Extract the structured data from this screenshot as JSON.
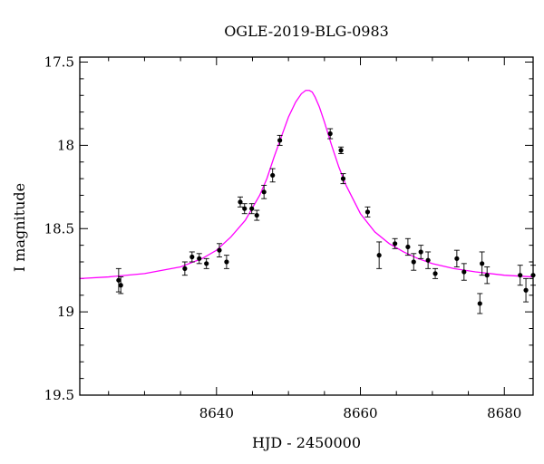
{
  "chart_data": {
    "type": "scatter",
    "title": "OGLE-2019-BLG-0983",
    "xlabel": "HJD - 2450000",
    "ylabel": "I magnitude",
    "xlim": [
      8621,
      8684
    ],
    "ylim": [
      19.5,
      17.47
    ],
    "y_inverted": true,
    "x_ticks": [
      8640,
      8660,
      8680
    ],
    "y_ticks": [
      17.5,
      18,
      18.5,
      19,
      19.5
    ],
    "y_tick_labels": [
      "17.5",
      "18",
      "18.5",
      "19",
      "19.5"
    ],
    "x_minor_step": 5,
    "y_minor_step": 0.1,
    "grid": false,
    "colors": {
      "points": "#000000",
      "model": "#ff00ff"
    },
    "series": [
      {
        "type": "errorbar-points",
        "points": [
          {
            "x": 8626.4,
            "y": 18.81,
            "err": 0.07
          },
          {
            "x": 8626.7,
            "y": 18.84,
            "err": 0.05
          },
          {
            "x": 8635.6,
            "y": 18.74,
            "err": 0.04
          },
          {
            "x": 8636.6,
            "y": 18.67,
            "err": 0.03
          },
          {
            "x": 8637.6,
            "y": 18.68,
            "err": 0.03
          },
          {
            "x": 8638.6,
            "y": 18.71,
            "err": 0.03
          },
          {
            "x": 8640.4,
            "y": 18.63,
            "err": 0.04
          },
          {
            "x": 8641.4,
            "y": 18.7,
            "err": 0.04
          },
          {
            "x": 8643.3,
            "y": 18.34,
            "err": 0.03
          },
          {
            "x": 8643.9,
            "y": 18.38,
            "err": 0.03
          },
          {
            "x": 8644.9,
            "y": 18.38,
            "err": 0.03
          },
          {
            "x": 8645.6,
            "y": 18.42,
            "err": 0.03
          },
          {
            "x": 8646.6,
            "y": 18.28,
            "err": 0.04
          },
          {
            "x": 8647.8,
            "y": 18.18,
            "err": 0.04
          },
          {
            "x": 8648.8,
            "y": 17.97,
            "err": 0.03
          },
          {
            "x": 8655.8,
            "y": 17.93,
            "err": 0.03
          },
          {
            "x": 8657.3,
            "y": 18.03,
            "err": 0.02
          },
          {
            "x": 8657.6,
            "y": 18.2,
            "err": 0.03
          },
          {
            "x": 8661.0,
            "y": 18.4,
            "err": 0.03
          },
          {
            "x": 8662.6,
            "y": 18.66,
            "err": 0.08
          },
          {
            "x": 8664.8,
            "y": 18.59,
            "err": 0.03
          },
          {
            "x": 8666.6,
            "y": 18.61,
            "err": 0.05
          },
          {
            "x": 8667.4,
            "y": 18.7,
            "err": 0.05
          },
          {
            "x": 8668.4,
            "y": 18.64,
            "err": 0.04
          },
          {
            "x": 8669.4,
            "y": 18.69,
            "err": 0.05
          },
          {
            "x": 8670.4,
            "y": 18.77,
            "err": 0.03
          },
          {
            "x": 8673.4,
            "y": 18.68,
            "err": 0.05
          },
          {
            "x": 8674.4,
            "y": 18.76,
            "err": 0.05
          },
          {
            "x": 8676.6,
            "y": 18.95,
            "err": 0.06
          },
          {
            "x": 8676.9,
            "y": 18.71,
            "err": 0.07
          },
          {
            "x": 8677.6,
            "y": 18.78,
            "err": 0.05
          },
          {
            "x": 8682.2,
            "y": 18.78,
            "err": 0.06
          },
          {
            "x": 8683.0,
            "y": 18.87,
            "err": 0.07
          },
          {
            "x": 8684.0,
            "y": 18.78,
            "err": 0.06
          }
        ]
      },
      {
        "type": "model-line",
        "x": [
          8621,
          8625,
          8630,
          8635,
          8638,
          8640,
          8642,
          8644,
          8646,
          8647,
          8648,
          8649,
          8650,
          8651,
          8651.8,
          8652.4,
          8652.9,
          8653.3,
          8653.7,
          8654.3,
          8655,
          8656,
          8657,
          8658,
          8660,
          8662,
          8664,
          8666,
          8668,
          8670,
          8673,
          8676,
          8680,
          8684
        ],
        "y": [
          18.8,
          18.79,
          18.77,
          18.73,
          18.68,
          18.63,
          18.55,
          18.45,
          18.3,
          18.2,
          18.07,
          17.95,
          17.83,
          17.74,
          17.69,
          17.67,
          17.67,
          17.68,
          17.71,
          17.77,
          17.86,
          18.0,
          18.13,
          18.24,
          18.41,
          18.52,
          18.59,
          18.64,
          18.68,
          18.71,
          18.74,
          18.76,
          18.78,
          18.79
        ]
      }
    ]
  }
}
